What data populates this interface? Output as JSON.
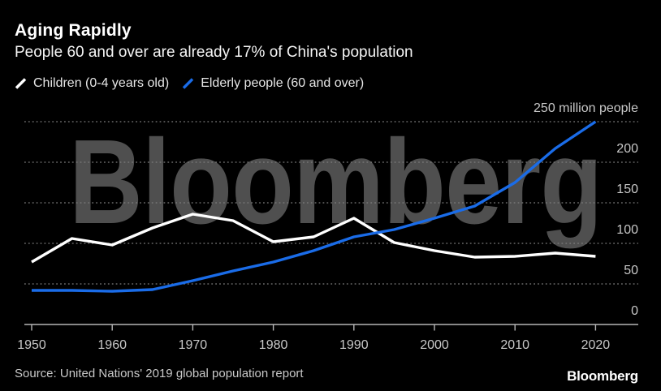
{
  "header": {
    "title": "Aging Rapidly",
    "subtitle": "People 60 and over are already 17% of China's population"
  },
  "legend": [
    {
      "label": "Children (0-4 years old)",
      "color": "#ffffff"
    },
    {
      "label": "Elderly people (60 and over)",
      "color": "#1a6ce8"
    }
  ],
  "watermark": {
    "text": "Bloomberg"
  },
  "footer": {
    "source": "Source: United Nations' 2019 global population report",
    "logo": "Bloomberg"
  },
  "colors": {
    "background": "#000000",
    "children_line": "#ffffff",
    "elderly_line": "#1a6ce8",
    "gridline": "#7d7d7d",
    "axis": "#b5b5b5",
    "axis_text": "#c8c8c8",
    "watermark": "#4f4f4f"
  },
  "chart_data": {
    "type": "line",
    "title": "Aging Rapidly",
    "subtitle": "People 60 and over are already 17% of China's population",
    "unit": "million people",
    "x": [
      1950,
      1955,
      1960,
      1965,
      1970,
      1975,
      1980,
      1985,
      1990,
      1995,
      2000,
      2005,
      2010,
      2015,
      2020
    ],
    "x_tick_labels": [
      "1950",
      "1960",
      "1970",
      "1980",
      "1990",
      "2000",
      "2010",
      "2020"
    ],
    "series": [
      {
        "name": "Children (0-4 years old)",
        "color": "#ffffff",
        "values": [
          77,
          106,
          98,
          119,
          136,
          128,
          102,
          108,
          131,
          101,
          91,
          83,
          84,
          88,
          84
        ]
      },
      {
        "name": "Elderly people (60 and over)",
        "color": "#1a6ce8",
        "values": [
          42,
          42,
          41,
          43,
          54,
          66,
          77,
          91,
          108,
          117,
          131,
          146,
          175,
          217,
          250
        ]
      }
    ],
    "y_axis": {
      "min": 0,
      "max": 250,
      "gridline_values": [
        250,
        200,
        150,
        100,
        50
      ],
      "labels": [
        {
          "text": "250 million people",
          "value": 250
        },
        {
          "text": "200",
          "value": 200
        },
        {
          "text": "150",
          "value": 150
        },
        {
          "text": "100",
          "value": 100
        },
        {
          "text": "50",
          "value": 50
        },
        {
          "text": "0",
          "value": 0
        }
      ]
    },
    "grid": "horizontal-dotted",
    "legend_position": "top-left",
    "source": "Source: United Nations' 2019 global population report"
  }
}
